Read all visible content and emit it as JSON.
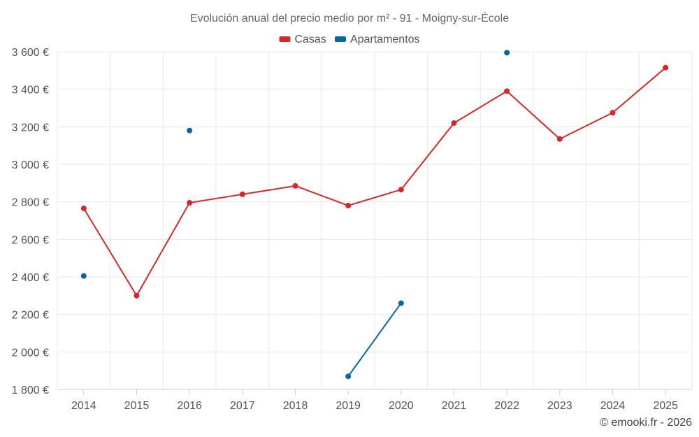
{
  "chart_data": {
    "type": "line",
    "title": "Evolución anual del precio medio por m² - 91 - Moigny-sur-École",
    "categories": [
      "2014",
      "2015",
      "2016",
      "2017",
      "2018",
      "2019",
      "2020",
      "2021",
      "2022",
      "2023",
      "2024",
      "2025"
    ],
    "series": [
      {
        "name": "Casas",
        "color": "#d62728",
        "values": [
          2765,
          2300,
          2795,
          2840,
          2885,
          2780,
          2865,
          3220,
          3390,
          3135,
          3275,
          3515
        ]
      },
      {
        "name": "Apartamentos",
        "color": "#07669e",
        "values": [
          2405,
          null,
          3180,
          null,
          null,
          1870,
          2260,
          null,
          3595,
          null,
          null,
          null
        ]
      }
    ],
    "ylim": [
      1800,
      3600
    ],
    "yticks": [
      1800,
      2000,
      2200,
      2400,
      2600,
      2800,
      3000,
      3200,
      3400,
      3600
    ],
    "ytick_labels": [
      "1 800 €",
      "2 000 €",
      "2 200 €",
      "2 400 €",
      "2 600 €",
      "2 800 €",
      "3 000 €",
      "3 200 €",
      "3 400 €",
      "3 600 €"
    ],
    "grid": true,
    "legend_position": "top-center"
  },
  "credit": "© emooki.fr - 2026"
}
